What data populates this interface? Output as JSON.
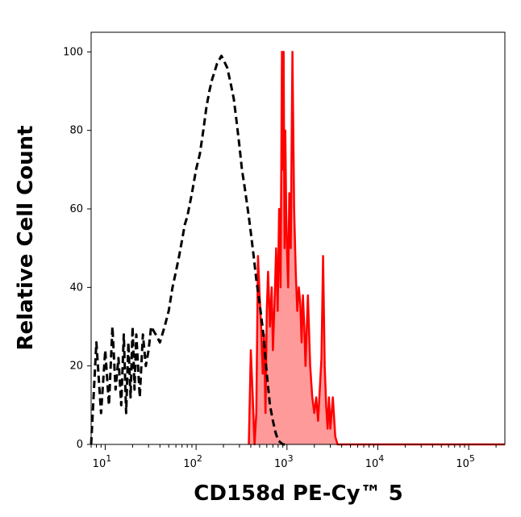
{
  "chart_data": {
    "type": "area",
    "title": "",
    "xlabel": "CD158d PE-Cy™ 5",
    "ylabel": "Relative Cell Count",
    "xscale": "log",
    "xlim": [
      7,
      250000
    ],
    "ylim": [
      0,
      105
    ],
    "grid": false,
    "x_tick_labels": [
      {
        "base": "10",
        "exp": "1",
        "value": 10
      },
      {
        "base": "10",
        "exp": "2",
        "value": 100
      },
      {
        "base": "10",
        "exp": "3",
        "value": 1000
      },
      {
        "base": "10",
        "exp": "4",
        "value": 10000
      },
      {
        "base": "10",
        "exp": "5",
        "value": 100000
      }
    ],
    "y_tick_labels": [
      "0",
      "20",
      "40",
      "60",
      "80",
      "100"
    ],
    "y_ticks": [
      0,
      20,
      40,
      60,
      80,
      100
    ],
    "colors": {
      "control_line": "#000000",
      "stained_line": "#ff0000",
      "stained_fill": "#ff9a9a"
    },
    "series": [
      {
        "style": "dashed",
        "values": [
          [
            7,
            0
          ],
          [
            8,
            26
          ],
          [
            9,
            8
          ],
          [
            10,
            24
          ],
          [
            11,
            10
          ],
          [
            12,
            30
          ],
          [
            13,
            14
          ],
          [
            14,
            22
          ],
          [
            15,
            10
          ],
          [
            16,
            28
          ],
          [
            17,
            8
          ],
          [
            18,
            26
          ],
          [
            19,
            12
          ],
          [
            20,
            30
          ],
          [
            21,
            14
          ],
          [
            22,
            28
          ],
          [
            24,
            12
          ],
          [
            26,
            28
          ],
          [
            28,
            20
          ],
          [
            30,
            24
          ],
          [
            32,
            30
          ],
          [
            36,
            28
          ],
          [
            40,
            26
          ],
          [
            45,
            30
          ],
          [
            50,
            34
          ],
          [
            55,
            40
          ],
          [
            60,
            44
          ],
          [
            65,
            48
          ],
          [
            70,
            52
          ],
          [
            75,
            56
          ],
          [
            80,
            58
          ],
          [
            90,
            64
          ],
          [
            100,
            70
          ],
          [
            110,
            74
          ],
          [
            120,
            80
          ],
          [
            130,
            86
          ],
          [
            140,
            90
          ],
          [
            150,
            93
          ],
          [
            160,
            95
          ],
          [
            170,
            97
          ],
          [
            180,
            98
          ],
          [
            190,
            99
          ],
          [
            200,
            98
          ],
          [
            220,
            96
          ],
          [
            240,
            92
          ],
          [
            260,
            88
          ],
          [
            280,
            82
          ],
          [
            300,
            76
          ],
          [
            320,
            70
          ],
          [
            340,
            66
          ],
          [
            360,
            62
          ],
          [
            380,
            58
          ],
          [
            400,
            54
          ],
          [
            430,
            48
          ],
          [
            460,
            42
          ],
          [
            500,
            36
          ],
          [
            550,
            28
          ],
          [
            600,
            18
          ],
          [
            650,
            10
          ],
          [
            700,
            6
          ],
          [
            750,
            3
          ],
          [
            800,
            1
          ],
          [
            900,
            0
          ],
          [
            1000,
            0
          ]
        ]
      },
      {
        "style": "solid-filled",
        "values": [
          [
            380,
            0
          ],
          [
            400,
            24
          ],
          [
            420,
            12
          ],
          [
            440,
            0
          ],
          [
            460,
            8
          ],
          [
            480,
            48
          ],
          [
            500,
            38
          ],
          [
            520,
            30
          ],
          [
            540,
            18
          ],
          [
            560,
            28
          ],
          [
            580,
            8
          ],
          [
            600,
            34
          ],
          [
            620,
            44
          ],
          [
            650,
            30
          ],
          [
            680,
            40
          ],
          [
            700,
            24
          ],
          [
            730,
            36
          ],
          [
            760,
            50
          ],
          [
            790,
            34
          ],
          [
            820,
            60
          ],
          [
            850,
            40
          ],
          [
            880,
            100
          ],
          [
            900,
            70
          ],
          [
            920,
            100
          ],
          [
            940,
            50
          ],
          [
            960,
            80
          ],
          [
            980,
            60
          ],
          [
            1000,
            50
          ],
          [
            1030,
            40
          ],
          [
            1060,
            64
          ],
          [
            1100,
            50
          ],
          [
            1150,
            100
          ],
          [
            1200,
            60
          ],
          [
            1250,
            44
          ],
          [
            1300,
            34
          ],
          [
            1350,
            40
          ],
          [
            1400,
            36
          ],
          [
            1450,
            26
          ],
          [
            1500,
            38
          ],
          [
            1550,
            30
          ],
          [
            1600,
            20
          ],
          [
            1700,
            38
          ],
          [
            1800,
            20
          ],
          [
            1900,
            12
          ],
          [
            2000,
            8
          ],
          [
            2100,
            12
          ],
          [
            2200,
            6
          ],
          [
            2400,
            22
          ],
          [
            2500,
            48
          ],
          [
            2600,
            20
          ],
          [
            2700,
            10
          ],
          [
            2800,
            4
          ],
          [
            2900,
            12
          ],
          [
            3000,
            4
          ],
          [
            3200,
            12
          ],
          [
            3400,
            2
          ],
          [
            3600,
            0
          ],
          [
            5000,
            0
          ],
          [
            10000,
            0
          ],
          [
            50000,
            0
          ],
          [
            250000,
            0
          ]
        ]
      }
    ]
  }
}
